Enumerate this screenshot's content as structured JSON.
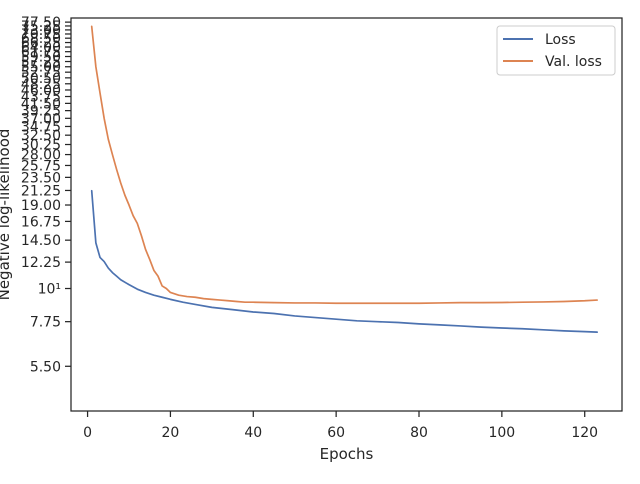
{
  "chart_data": {
    "type": "line",
    "xlabel": "Epochs",
    "ylabel": "Negative log-likelihood",
    "xlim": [
      -4,
      129
    ],
    "ylim": [
      3.9,
      80
    ],
    "yscale": "log",
    "grid": false,
    "legend_placement": "top-right",
    "x_ticks": [
      0,
      20,
      40,
      60,
      80,
      100,
      120
    ],
    "x_tick_labels": [
      "0",
      "20",
      "40",
      "60",
      "80",
      "100",
      "120"
    ],
    "y_ticks": [
      5.5,
      7.75,
      10,
      12.25,
      14.5,
      16.75,
      19,
      21.25,
      23.5,
      25.75,
      28,
      30.25,
      32.5,
      34.75,
      37,
      39.25,
      41.5,
      43.75,
      46,
      48.25,
      50.5,
      52.75,
      55,
      57.25,
      59.5,
      61.75,
      64,
      66.25,
      68.5,
      70.75,
      73,
      75.25,
      77.5
    ],
    "y_tick_labels": [
      "5.50",
      "7.75",
      "10¹",
      "12.25",
      "14.50",
      "16.75",
      "19.00",
      "21.25",
      "23.50",
      "25.75",
      "28.00",
      "30.25",
      "32.50",
      "34.75",
      "37.00",
      "39.25",
      "41.50",
      "43.75",
      "46.00",
      "48.25",
      "50.50",
      "52.75",
      "55.00",
      "57.25",
      "59.50",
      "61.75",
      "64.00",
      "66.25",
      "68.50",
      "70.75",
      "73.00",
      "75.25",
      "77.50"
    ],
    "series": [
      {
        "name": "Loss",
        "color": "#4c72b0",
        "x": [
          1,
          2,
          3,
          4,
          5,
          6,
          7,
          8,
          10,
          12,
          14,
          16,
          18,
          20,
          23,
          26,
          30,
          35,
          40,
          45,
          50,
          55,
          60,
          65,
          70,
          75,
          80,
          85,
          90,
          95,
          100,
          105,
          110,
          115,
          120,
          123
        ],
        "y": [
          21.2,
          14.2,
          12.7,
          12.3,
          11.7,
          11.3,
          11.0,
          10.7,
          10.3,
          9.95,
          9.7,
          9.5,
          9.35,
          9.2,
          9.0,
          8.85,
          8.65,
          8.5,
          8.35,
          8.25,
          8.1,
          8.0,
          7.9,
          7.8,
          7.75,
          7.7,
          7.62,
          7.56,
          7.5,
          7.43,
          7.38,
          7.34,
          7.28,
          7.22,
          7.18,
          7.15
        ]
      },
      {
        "name": "Val. loss",
        "color": "#dd8452",
        "x": [
          1,
          2,
          3,
          4,
          5,
          6,
          7,
          8,
          9,
          10,
          11,
          12,
          13,
          14,
          15,
          16,
          17,
          18,
          19,
          20,
          22,
          24,
          26,
          28,
          30,
          32,
          34,
          36,
          38,
          40,
          45,
          50,
          55,
          60,
          65,
          70,
          75,
          80,
          85,
          90,
          95,
          100,
          105,
          110,
          115,
          120,
          123
        ],
        "y": [
          75.0,
          55.0,
          45.0,
          37.0,
          31.5,
          28.0,
          25.0,
          22.5,
          20.5,
          19.0,
          17.5,
          16.5,
          15.0,
          13.5,
          12.5,
          11.5,
          11.0,
          10.2,
          10.0,
          9.7,
          9.5,
          9.4,
          9.35,
          9.25,
          9.2,
          9.15,
          9.1,
          9.05,
          9.0,
          9.0,
          8.97,
          8.95,
          8.95,
          8.93,
          8.93,
          8.93,
          8.93,
          8.93,
          8.95,
          8.97,
          8.97,
          8.98,
          9.0,
          9.02,
          9.05,
          9.1,
          9.15
        ]
      }
    ]
  }
}
